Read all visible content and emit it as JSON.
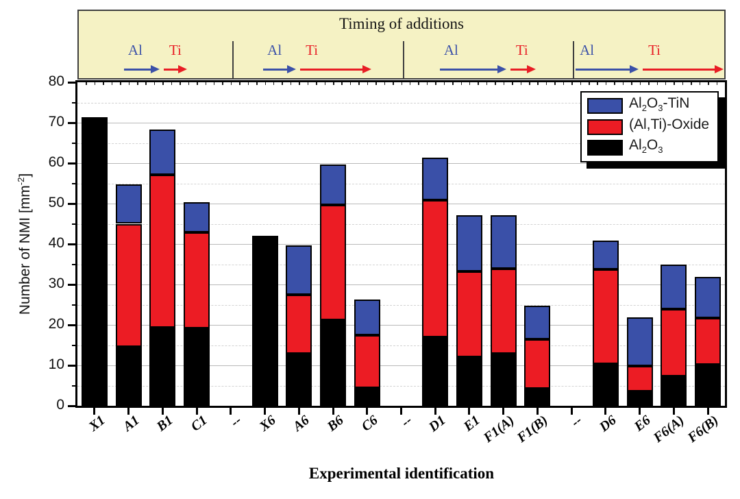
{
  "header_band": {
    "title": "Timing of additions",
    "bg_color": "#f5f2c4",
    "al_color": "#3b51a8",
    "ti_color": "#e81e25",
    "panels": [
      {
        "al_label": "Al",
        "ti_label": "Ti",
        "al_len": 52,
        "ti_len": 34
      },
      {
        "al_label": "Al",
        "ti_label": "Ti",
        "al_len": 48,
        "ti_len": 104
      },
      {
        "al_label": "Al",
        "ti_label": "Ti",
        "al_len": 97,
        "ti_len": 37
      },
      {
        "al_label": "Al",
        "ti_label": "Ti",
        "al_len": 92,
        "ti_len": 118
      }
    ]
  },
  "axes": {
    "ylabel_pre": "Number of NMI [mm",
    "ylabel_sup": "-2",
    "ylabel_post": "]",
    "xlabel": "Experimental identification"
  },
  "legend": {
    "entries": [
      {
        "color": "#3a50a8",
        "p1": "Al",
        "s1": "2",
        "p2": "O",
        "s2": "3",
        "p3": "-TiN"
      },
      {
        "color": "#ec1c24",
        "p1": "(Al,Ti)-Oxide"
      },
      {
        "color": "#000000",
        "p1": "Al",
        "s1": "2",
        "p2": "O",
        "s2": "3"
      }
    ]
  },
  "chart_data": {
    "type": "bar",
    "stacked": true,
    "title": "Timing of additions",
    "xlabel": "Experimental identification",
    "ylabel": "Number of NMI [mm^-2]",
    "ylim": [
      0,
      80
    ],
    "yticks": [
      0,
      10,
      20,
      30,
      40,
      50,
      60,
      70,
      80
    ],
    "minor_tick_step": 5,
    "grid": "major solid, minor dashed",
    "legend_position": "top-right",
    "group_separator_category": "--",
    "categories": [
      "X1",
      "A1",
      "B1",
      "C1",
      "--",
      "X6",
      "A6",
      "B6",
      "C6",
      "--",
      "D1",
      "E1",
      "F1(A)",
      "F1(B)",
      "--",
      "D6",
      "E6",
      "F6(A)",
      "F6(B)"
    ],
    "series": [
      {
        "name": "Al2O3",
        "color": "#000000",
        "values": [
          71.3,
          14.5,
          19.4,
          19.2,
          0,
          42.0,
          12.9,
          21.2,
          4.4,
          0,
          17.0,
          12.1,
          12.9,
          4.2,
          0,
          10.3,
          3.5,
          7.3,
          10.1
        ]
      },
      {
        "name": "(Al,Ti)-Oxide",
        "color": "#ec1c24",
        "values": [
          0,
          30.5,
          37.7,
          23.6,
          0,
          0,
          14.5,
          28.4,
          13.1,
          0,
          33.8,
          21.1,
          21.0,
          12.2,
          0,
          23.4,
          6.4,
          16.6,
          11.6
        ]
      },
      {
        "name": "Al2O3-TiN",
        "color": "#3a50a8",
        "values": [
          0,
          9.7,
          11.2,
          7.5,
          0,
          0,
          12.3,
          10.0,
          8.8,
          0,
          10.6,
          14.0,
          13.3,
          8.4,
          0,
          7.1,
          12.0,
          11.0,
          10.2
        ]
      }
    ]
  }
}
